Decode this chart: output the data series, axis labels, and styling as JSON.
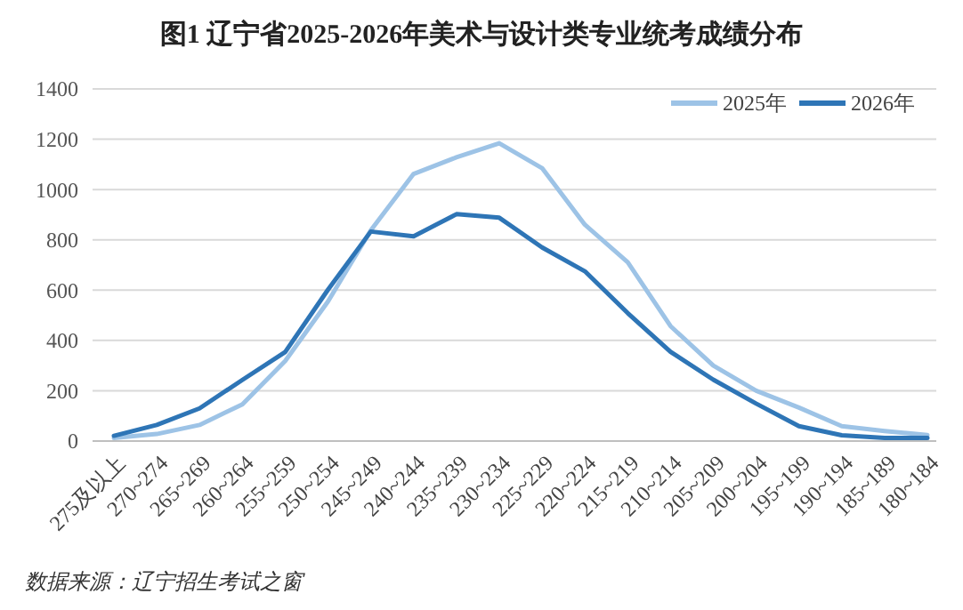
{
  "chart_data": {
    "type": "line",
    "title": "图1  辽宁省2025-2026年美术与设计类专业统考成绩分布",
    "categories": [
      "275及以上",
      "270~274",
      "265~269",
      "260~264",
      "255~259",
      "250~254",
      "245~249",
      "240~244",
      "235~239",
      "230~234",
      "225~229",
      "220~224",
      "215~219",
      "210~214",
      "205~209",
      "200~204",
      "195~199",
      "190~194",
      "185~189",
      "180~184"
    ],
    "series": [
      {
        "name": "2025年",
        "color": "#9dc3e6",
        "values": [
          12,
          28,
          64,
          146,
          318,
          555,
          838,
          1062,
          1128,
          1184,
          1085,
          860,
          711,
          457,
          300,
          200,
          133,
          59,
          40,
          24
        ]
      },
      {
        "name": "2026年",
        "color": "#2e75b6",
        "values": [
          21,
          64,
          130,
          243,
          354,
          602,
          833,
          814,
          902,
          888,
          770,
          675,
          509,
          355,
          244,
          149,
          59,
          23,
          12,
          12
        ]
      }
    ],
    "ylim": [
      0,
      1400
    ],
    "yticks": [
      0,
      200,
      400,
      600,
      800,
      1000,
      1200,
      1400
    ],
    "grid": "y",
    "legend": "top right",
    "marker": "none",
    "line_style": "solid",
    "annotations": [
      "数据来源：辽宁招生考试之窗"
    ]
  }
}
